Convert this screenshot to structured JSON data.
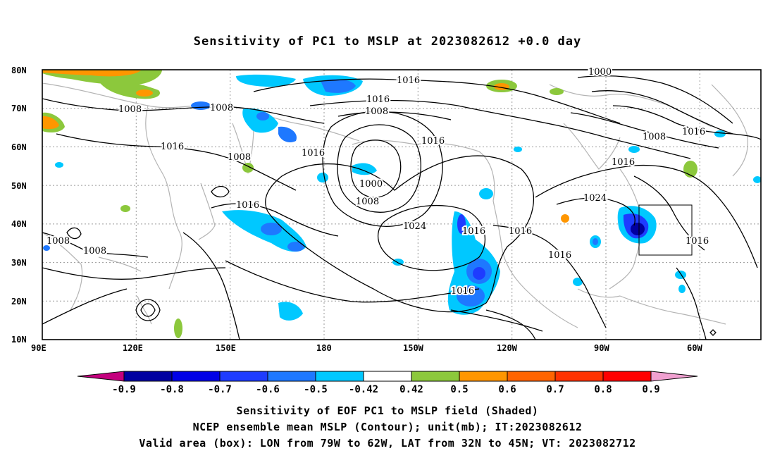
{
  "title": "Sensitivity of PC1 to MSLP at 2023082612 +0.0 day",
  "lat_labels": [
    "80N",
    "70N",
    "60N",
    "50N",
    "40N",
    "30N",
    "20N",
    "10N"
  ],
  "lon_labels": [
    "90E",
    "120E",
    "150E",
    "180",
    "150W",
    "120W",
    "90W",
    "60W"
  ],
  "contour_labels": [
    "1016",
    "1016",
    "1008",
    "1000",
    "1008",
    "1008",
    "1016",
    "1016",
    "1008",
    "1016",
    "1000",
    "1008",
    "1016",
    "1016",
    "1008",
    "1024",
    "1016",
    "1016",
    "1024",
    "1016",
    "1016",
    "1016",
    "1008",
    "1008",
    "1016"
  ],
  "colorbar": {
    "labels": [
      "-0.9",
      "-0.8",
      "-0.7",
      "-0.6",
      "-0.5",
      "-0.42",
      "0.42",
      "0.5",
      "0.6",
      "0.7",
      "0.8",
      "0.9"
    ],
    "colors": [
      "#c4007e",
      "#0000a0",
      "#0000e6",
      "#1e3cff",
      "#1e78ff",
      "#00c8ff",
      "#ffffff",
      "#8cc83c",
      "#ff9600",
      "#ff6400",
      "#ff3200",
      "#ff0000",
      "#f0a0d0"
    ]
  },
  "captions": [
    "Sensitivity of EOF PC1 to MSLP field (Shaded)",
    "NCEP ensemble mean MSLP (Contour); unit(mb); IT:2023082612",
    "Valid area (box): LON from 79W to 62W, LAT from 32N to 45N; VT: 2023082712"
  ]
}
